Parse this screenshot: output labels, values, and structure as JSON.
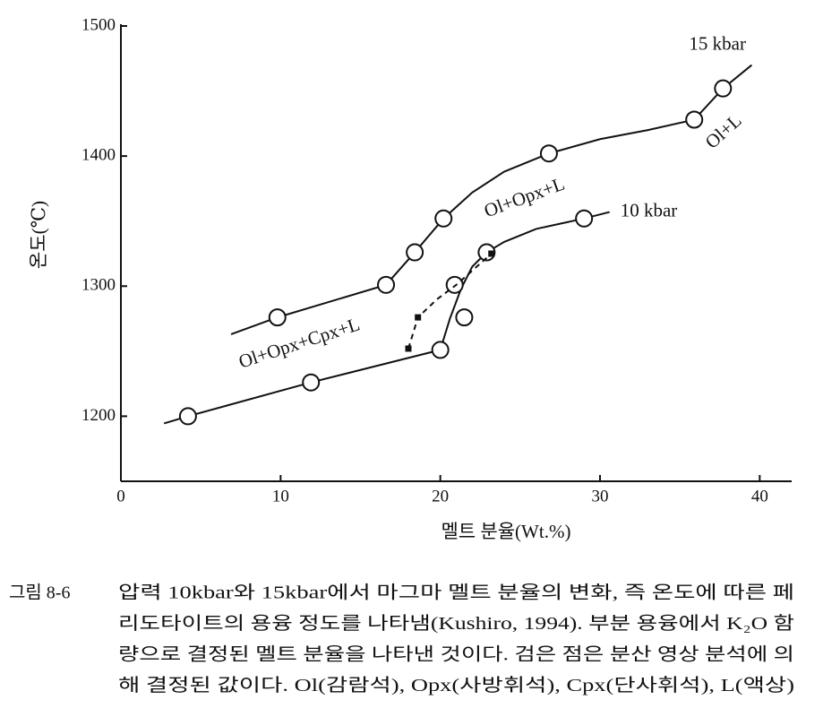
{
  "chart_data": {
    "type": "scatter",
    "ylabel": "온도(℃)",
    "xlabel": "멜트 분율(Wt.%)",
    "xlim": [
      0,
      42
    ],
    "xticks": [
      0,
      10,
      20,
      30,
      40
    ],
    "ylim": [
      1150,
      1500
    ],
    "yticks": [
      1200,
      1300,
      1400,
      1500
    ],
    "series": [
      {
        "name": "15 kbar",
        "marker": "circle",
        "dash": false,
        "x": [
          9.8,
          16.6,
          18.4,
          20.2,
          26.8,
          35.9,
          37.7
        ],
        "values": [
          1276,
          1301,
          1326,
          1352,
          1402,
          1428,
          1452
        ],
        "line_x": [
          6.9,
          9.8,
          16.6,
          18.4,
          20.2,
          22,
          24,
          26.8,
          30,
          33,
          35.9,
          37.7,
          39.5
        ],
        "line_values": [
          1263,
          1276,
          1301,
          1326,
          1352,
          1372,
          1388,
          1402,
          1413,
          1420,
          1428,
          1452,
          1470
        ]
      },
      {
        "name": "10 kbar",
        "marker": "circle",
        "dash": false,
        "x": [
          4.2,
          11.9,
          20.0,
          20.9,
          21.5,
          22.9,
          29.0
        ],
        "values": [
          1200,
          1226,
          1251,
          1301,
          1276,
          1326,
          1352
        ],
        "line_x": [
          2.7,
          4.2,
          11.9,
          20.0,
          20.6,
          21.3,
          22.0,
          22.9,
          24,
          26,
          29.0,
          30.6
        ],
        "line_values": [
          1194.5,
          1200,
          1226,
          1251,
          1275,
          1298,
          1315,
          1326,
          1334,
          1344,
          1352,
          1357
        ]
      },
      {
        "marker": "square",
        "dash": true,
        "x": [
          18.0,
          18.6,
          23.2
        ],
        "values": [
          1252,
          1276,
          1325
        ],
        "line_x": [
          18.0,
          18.6,
          19.8,
          21.0,
          23.2
        ],
        "line_values": [
          1252,
          1276,
          1290,
          1301,
          1325
        ]
      }
    ],
    "annotations": [
      {
        "text": "Ol+L",
        "x": 37.8,
        "y": 1418,
        "angle": -42
      },
      {
        "text": "Ol+Opx+L",
        "x": 25.3,
        "y": 1367,
        "angle": -20
      },
      {
        "text": "Ol+Opx+Cpx+L",
        "x": 11.2,
        "y": 1255,
        "angle": -18
      }
    ]
  },
  "caption": {
    "label": "그림 8-6",
    "lines": [
      "압력 10kbar와 15kbar에서 마그마 멜트 분율의 변화, 즉 온도에 따른 페",
      "리도타이트의 용융 정도를 나타냄(Kushiro, 1994). 부분 용융에서 K₂O 함",
      "량으로 결정된 멜트 분율을 나타낸 것이다. 검은 점은 분산 영상 분석에 의",
      "해 결정된 값이다. Ol(감람석), Opx(사방휘석), Cpx(단사휘석), L(액상)"
    ]
  }
}
